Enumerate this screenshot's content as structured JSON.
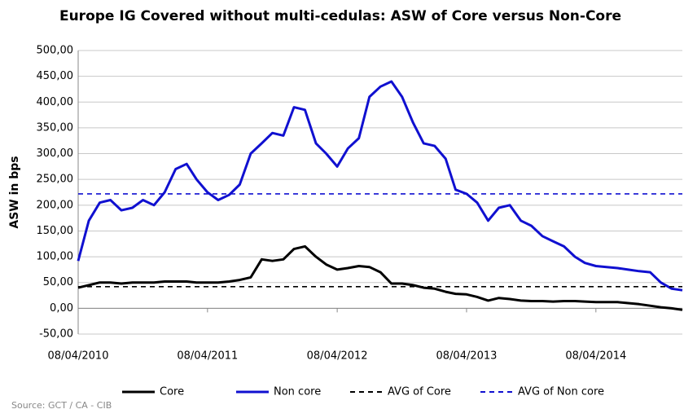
{
  "chart_data": {
    "type": "line",
    "title": "Europe IG Covered without multi-cedulas: ASW of Core versus Non-Core",
    "ylabel": "ASW in bps",
    "source": "Source: GCT / CA - CIB",
    "x": [
      "08/04/2010",
      "08/05/2010",
      "08/06/2010",
      "08/07/2010",
      "08/08/2010",
      "08/09/2010",
      "08/10/2010",
      "08/11/2010",
      "08/12/2010",
      "08/01/2011",
      "08/02/2011",
      "08/03/2011",
      "08/04/2011",
      "08/05/2011",
      "08/06/2011",
      "08/07/2011",
      "08/08/2011",
      "08/09/2011",
      "08/10/2011",
      "08/11/2011",
      "08/12/2011",
      "08/01/2012",
      "08/02/2012",
      "08/03/2012",
      "08/04/2012",
      "08/05/2012",
      "08/06/2012",
      "08/07/2012",
      "08/08/2012",
      "08/09/2012",
      "08/10/2012",
      "08/11/2012",
      "08/12/2012",
      "08/01/2013",
      "08/02/2013",
      "08/03/2013",
      "08/04/2013",
      "08/05/2013",
      "08/06/2013",
      "08/07/2013",
      "08/08/2013",
      "08/09/2013",
      "08/10/2013",
      "08/11/2013",
      "08/12/2013",
      "08/01/2014",
      "08/02/2014",
      "08/03/2014",
      "08/04/2014",
      "08/05/2014",
      "08/06/2014",
      "08/07/2014",
      "08/08/2014",
      "08/09/2014",
      "08/10/2014",
      "08/11/2014",
      "08/12/2014"
    ],
    "series": [
      {
        "name": "Core",
        "color": "#000000",
        "values": [
          40,
          45,
          50,
          50,
          48,
          50,
          50,
          50,
          52,
          52,
          52,
          50,
          50,
          50,
          52,
          55,
          60,
          95,
          92,
          95,
          115,
          120,
          100,
          85,
          75,
          78,
          82,
          80,
          70,
          48,
          48,
          45,
          40,
          38,
          32,
          28,
          27,
          22,
          15,
          20,
          18,
          15,
          14,
          14,
          13,
          14,
          14,
          13,
          12,
          12,
          12,
          10,
          8,
          5,
          2,
          0,
          -3
        ]
      },
      {
        "name": "Non core",
        "color": "#1010d0",
        "values": [
          92,
          170,
          205,
          210,
          190,
          195,
          210,
          200,
          225,
          270,
          280,
          250,
          225,
          210,
          220,
          240,
          300,
          320,
          340,
          335,
          390,
          385,
          320,
          300,
          275,
          310,
          330,
          410,
          430,
          440,
          410,
          360,
          320,
          315,
          290,
          230,
          222,
          205,
          170,
          195,
          200,
          170,
          160,
          140,
          130,
          120,
          100,
          88,
          82,
          80,
          78,
          75,
          72,
          70,
          50,
          38,
          35
        ]
      }
    ],
    "reference_lines": [
      {
        "name": "AVG of Core",
        "color": "#000000",
        "value": 42
      },
      {
        "name": "AVG of Non core",
        "color": "#1010d0",
        "value": 222
      }
    ],
    "xlim": [
      "08/04/2010",
      "08/12/2014"
    ],
    "xticks": [
      "08/04/2010",
      "08/04/2011",
      "08/04/2012",
      "08/04/2013",
      "08/04/2014"
    ],
    "ylim": [
      -50,
      500
    ],
    "yticks": [
      {
        "value": -50,
        "label": "-50,00"
      },
      {
        "value": 0,
        "label": "0,00"
      },
      {
        "value": 50,
        "label": "50,00"
      },
      {
        "value": 100,
        "label": "100,00"
      },
      {
        "value": 150,
        "label": "150,00"
      },
      {
        "value": 200,
        "label": "200,00"
      },
      {
        "value": 250,
        "label": "250,00"
      },
      {
        "value": 300,
        "label": "300,00"
      },
      {
        "value": 350,
        "label": "350,00"
      },
      {
        "value": 400,
        "label": "400,00"
      },
      {
        "value": 450,
        "label": "450,00"
      },
      {
        "value": 500,
        "label": "500,00"
      }
    ],
    "grid": true,
    "legend": "bottom"
  }
}
